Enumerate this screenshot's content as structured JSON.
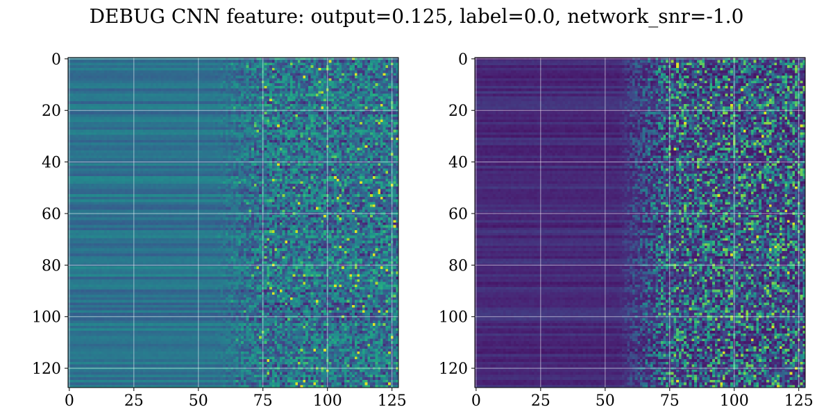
{
  "figure": {
    "title": "DEBUG CNN feature: output=0.125, label=0.0, network_snr=-1.0"
  },
  "chart_data": [
    {
      "type": "heatmap",
      "title": "",
      "xlabel": "",
      "ylabel": "",
      "xlim": [
        -0.5,
        127.5
      ],
      "ylim": [
        127.5,
        -0.5
      ],
      "grid": true,
      "colormap": "viridis",
      "shape": [
        128,
        128
      ],
      "xticks": [
        "0",
        "25",
        "50",
        "75",
        "100",
        "125"
      ],
      "yticks": [
        "0",
        "20",
        "40",
        "60",
        "80",
        "100",
        "120"
      ],
      "value_summary": "columns 0-55 smooth horizontal bands mid teal-blue (~0.35-0.45 of color range); columns 60-127 noisy speckled texture; bright yellow spots near rows 2, 11, 62-68, 103, 121 at columns 75-115",
      "row_base_level": "mid",
      "noise_level": "high"
    },
    {
      "type": "heatmap",
      "title": "",
      "xlabel": "",
      "ylabel": "",
      "xlim": [
        -0.5,
        127.5
      ],
      "ylim": [
        127.5,
        -0.5
      ],
      "grid": true,
      "colormap": "viridis",
      "shape": [
        128,
        128
      ],
      "xticks": [
        "0",
        "25",
        "50",
        "75",
        "100",
        "125"
      ],
      "yticks": [
        "0",
        "20",
        "40",
        "60",
        "80",
        "100",
        "120"
      ],
      "value_summary": "columns 0-55 dark purple horizontal bands (~0.1-0.2 of color range); columns 60-127 noisy dark speckle with teal/green pixels; few yellow spots near rows 15, 36, 39, 72, 74 at columns 80-95",
      "row_base_level": "low",
      "noise_level": "high"
    }
  ]
}
